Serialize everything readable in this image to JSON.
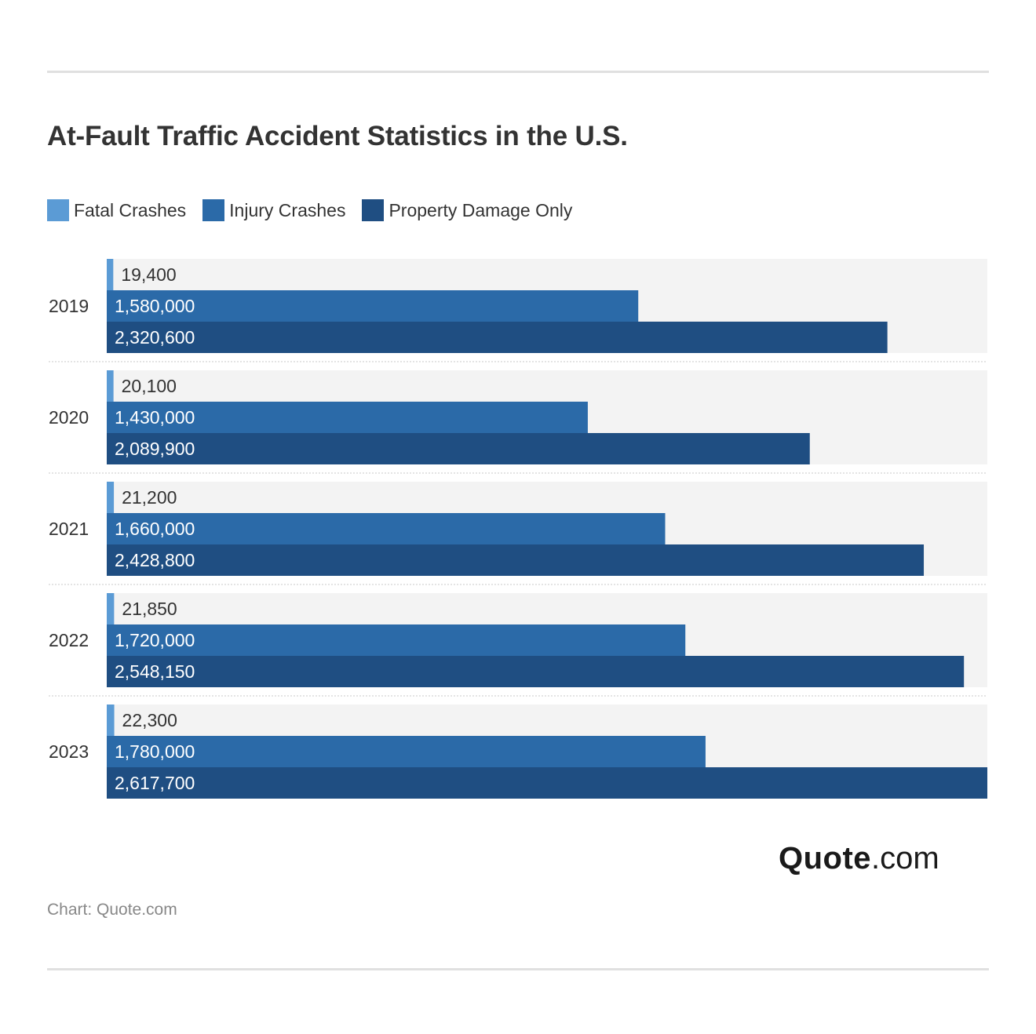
{
  "title": "At-Fault Traffic Accident Statistics in the U.S.",
  "legend": [
    {
      "label": "Fatal Crashes",
      "color": "#5b9bd5"
    },
    {
      "label": "Injury Crashes",
      "color": "#2b6aa8"
    },
    {
      "label": "Property Damage Only",
      "color": "#1f4e82"
    }
  ],
  "chart_data": {
    "type": "bar",
    "orientation": "horizontal",
    "title": "At-Fault Traffic Accident Statistics in the U.S.",
    "xlabel": "",
    "ylabel": "",
    "categories": [
      "2019",
      "2020",
      "2021",
      "2022",
      "2023"
    ],
    "series": [
      {
        "name": "Fatal Crashes",
        "color": "#5b9bd5",
        "values": [
          19400,
          20100,
          21200,
          21850,
          22300
        ],
        "labels": [
          "19,400",
          "20,100",
          "21,200",
          "21,850",
          "22,300"
        ]
      },
      {
        "name": "Injury Crashes",
        "color": "#2b6aa8",
        "values": [
          1580000,
          1430000,
          1660000,
          1720000,
          1780000
        ],
        "labels": [
          "1,580,000",
          "1,430,000",
          "1,660,000",
          "1,720,000",
          "1,780,000"
        ]
      },
      {
        "name": "Property Damage Only",
        "color": "#1f4e82",
        "values": [
          2320600,
          2089900,
          2428800,
          2548150,
          2617700
        ],
        "labels": [
          "2,320,600",
          "2,089,900",
          "2,428,800",
          "2,548,150",
          "2,617,700"
        ]
      }
    ],
    "xlim": [
      0,
      2617700
    ],
    "grid": false,
    "legend_position": "top-left"
  },
  "logo": {
    "brand": "Quote",
    "tld": ".com"
  },
  "source": "Chart: Quote.com"
}
